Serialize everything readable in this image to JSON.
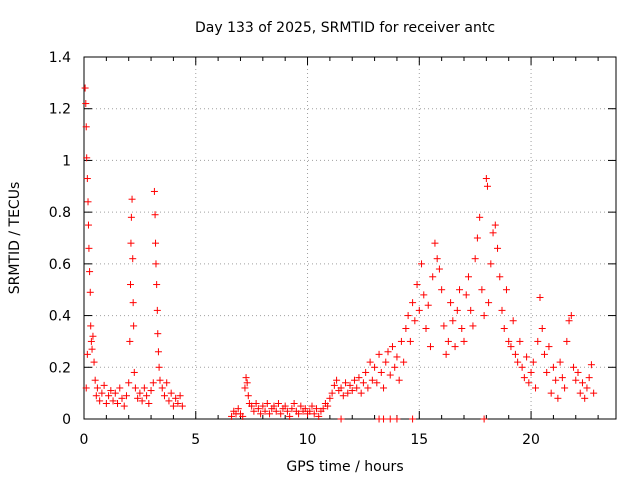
{
  "chart_data": {
    "type": "scatter",
    "title": "Day 133 of 2025, SRMTID for receiver antc",
    "xlabel": "GPS time / hours",
    "ylabel": "SRMTID / TECUs",
    "xlim": [
      0,
      23.8
    ],
    "ylim": [
      0,
      1.4
    ],
    "grid": true,
    "marker": "+",
    "marker_color": "#ff0000",
    "x_ticks": [
      0,
      5,
      10,
      15,
      20
    ],
    "x_tick_labels": [
      "0",
      "5",
      "10",
      "15",
      "20"
    ],
    "y_ticks": [
      0,
      0.2,
      0.4,
      0.6,
      0.8,
      1,
      1.2,
      1.4
    ],
    "y_tick_labels": [
      "0",
      "0.2",
      "0.4",
      "0.6",
      "0.8",
      "1",
      "1.2",
      "1.4"
    ],
    "series": [
      {
        "name": "SRMTID",
        "points": [
          [
            0.05,
            1.28
          ],
          [
            0.08,
            1.22
          ],
          [
            0.1,
            1.13
          ],
          [
            0.12,
            1.01
          ],
          [
            0.15,
            0.93
          ],
          [
            0.18,
            0.84
          ],
          [
            0.2,
            0.75
          ],
          [
            0.22,
            0.66
          ],
          [
            0.25,
            0.57
          ],
          [
            0.28,
            0.49
          ],
          [
            0.3,
            0.36
          ],
          [
            0.33,
            0.3
          ],
          [
            0.36,
            0.27
          ],
          [
            0.4,
            0.32
          ],
          [
            0.45,
            0.22
          ],
          [
            0.5,
            0.15
          ],
          [
            0.1,
            0.12
          ],
          [
            0.15,
            0.25
          ],
          [
            0.55,
            0.09
          ],
          [
            0.6,
            0.12
          ],
          [
            0.7,
            0.07
          ],
          [
            0.8,
            0.1
          ],
          [
            0.9,
            0.13
          ],
          [
            1.0,
            0.06
          ],
          [
            1.1,
            0.09
          ],
          [
            1.2,
            0.11
          ],
          [
            1.3,
            0.07
          ],
          [
            1.4,
            0.1
          ],
          [
            1.5,
            0.06
          ],
          [
            1.6,
            0.12
          ],
          [
            1.7,
            0.08
          ],
          [
            1.8,
            0.05
          ],
          [
            1.9,
            0.09
          ],
          [
            2.0,
            0.14
          ],
          [
            2.05,
            0.3
          ],
          [
            2.08,
            0.52
          ],
          [
            2.1,
            0.68
          ],
          [
            2.12,
            0.78
          ],
          [
            2.15,
            0.85
          ],
          [
            2.18,
            0.62
          ],
          [
            2.2,
            0.45
          ],
          [
            2.22,
            0.36
          ],
          [
            2.25,
            0.18
          ],
          [
            2.3,
            0.12
          ],
          [
            2.4,
            0.08
          ],
          [
            2.5,
            0.1
          ],
          [
            2.6,
            0.07
          ],
          [
            2.7,
            0.12
          ],
          [
            2.8,
            0.09
          ],
          [
            2.9,
            0.06
          ],
          [
            3.0,
            0.11
          ],
          [
            3.1,
            0.14
          ],
          [
            3.15,
            0.88
          ],
          [
            3.18,
            0.79
          ],
          [
            3.2,
            0.68
          ],
          [
            3.22,
            0.6
          ],
          [
            3.25,
            0.52
          ],
          [
            3.28,
            0.42
          ],
          [
            3.3,
            0.33
          ],
          [
            3.33,
            0.26
          ],
          [
            3.36,
            0.2
          ],
          [
            3.4,
            0.15
          ],
          [
            3.5,
            0.12
          ],
          [
            3.6,
            0.09
          ],
          [
            3.7,
            0.14
          ],
          [
            3.8,
            0.07
          ],
          [
            3.9,
            0.1
          ],
          [
            4.0,
            0.05
          ],
          [
            4.1,
            0.08
          ],
          [
            4.2,
            0.06
          ],
          [
            4.3,
            0.09
          ],
          [
            4.4,
            0.05
          ],
          [
            6.6,
            0.01
          ],
          [
            6.7,
            0.03
          ],
          [
            6.8,
            0.02
          ],
          [
            6.9,
            0.04
          ],
          [
            7.0,
            0.02
          ],
          [
            7.1,
            0.01
          ],
          [
            7.2,
            0.12
          ],
          [
            7.25,
            0.16
          ],
          [
            7.3,
            0.14
          ],
          [
            7.35,
            0.09
          ],
          [
            7.4,
            0.06
          ],
          [
            7.5,
            0.05
          ],
          [
            7.6,
            0.03
          ],
          [
            7.7,
            0.06
          ],
          [
            7.8,
            0.04
          ],
          [
            7.9,
            0.02
          ],
          [
            8.0,
            0.05
          ],
          [
            8.1,
            0.03
          ],
          [
            8.2,
            0.06
          ],
          [
            8.3,
            0.02
          ],
          [
            8.4,
            0.04
          ],
          [
            8.5,
            0.05
          ],
          [
            8.6,
            0.03
          ],
          [
            8.7,
            0.06
          ],
          [
            8.8,
            0.02
          ],
          [
            8.9,
            0.04
          ],
          [
            9.0,
            0.05
          ],
          [
            9.1,
            0.03
          ],
          [
            9.2,
            0.01
          ],
          [
            9.3,
            0.04
          ],
          [
            9.4,
            0.06
          ],
          [
            9.5,
            0.03
          ],
          [
            9.6,
            0.02
          ],
          [
            9.7,
            0.05
          ],
          [
            9.8,
            0.03
          ],
          [
            9.9,
            0.04
          ],
          [
            10.0,
            0.02
          ],
          [
            10.1,
            0.03
          ],
          [
            10.2,
            0.05
          ],
          [
            10.3,
            0.02
          ],
          [
            10.4,
            0.04
          ],
          [
            10.5,
            0.01
          ],
          [
            10.6,
            0.03
          ],
          [
            10.7,
            0.04
          ],
          [
            10.8,
            0.06
          ],
          [
            10.9,
            0.05
          ],
          [
            11.0,
            0.08
          ],
          [
            11.1,
            0.1
          ],
          [
            11.2,
            0.13
          ],
          [
            11.3,
            0.15
          ],
          [
            11.4,
            0.11
          ],
          [
            11.5,
            0.12
          ],
          [
            11.6,
            0.09
          ],
          [
            11.7,
            0.14
          ],
          [
            11.8,
            0.1
          ],
          [
            11.9,
            0.13
          ],
          [
            12.0,
            0.11
          ],
          [
            12.1,
            0.15
          ],
          [
            12.2,
            0.12
          ],
          [
            12.3,
            0.16
          ],
          [
            12.4,
            0.1
          ],
          [
            12.5,
            0.14
          ],
          [
            12.6,
            0.18
          ],
          [
            12.7,
            0.12
          ],
          [
            12.8,
            0.22
          ],
          [
            12.9,
            0.15
          ],
          [
            13.0,
            0.2
          ],
          [
            13.1,
            0.14
          ],
          [
            13.2,
            0.25
          ],
          [
            13.3,
            0.18
          ],
          [
            13.4,
            0.12
          ],
          [
            13.5,
            0.22
          ],
          [
            13.6,
            0.26
          ],
          [
            13.7,
            0.17
          ],
          [
            13.8,
            0.28
          ],
          [
            13.9,
            0.2
          ],
          [
            14.0,
            0.24
          ],
          [
            14.1,
            0.15
          ],
          [
            14.2,
            0.3
          ],
          [
            14.3,
            0.22
          ],
          [
            14.4,
            0.35
          ],
          [
            14.5,
            0.4
          ],
          [
            14.6,
            0.3
          ],
          [
            14.7,
            0.45
          ],
          [
            14.8,
            0.38
          ],
          [
            14.9,
            0.52
          ],
          [
            15.0,
            0.42
          ],
          [
            15.1,
            0.6
          ],
          [
            15.2,
            0.48
          ],
          [
            15.3,
            0.35
          ],
          [
            15.4,
            0.44
          ],
          [
            15.5,
            0.28
          ],
          [
            15.6,
            0.55
          ],
          [
            15.7,
            0.68
          ],
          [
            15.8,
            0.62
          ],
          [
            15.9,
            0.58
          ],
          [
            16.0,
            0.5
          ],
          [
            16.1,
            0.36
          ],
          [
            16.2,
            0.25
          ],
          [
            16.3,
            0.3
          ],
          [
            16.4,
            0.45
          ],
          [
            16.5,
            0.38
          ],
          [
            16.6,
            0.28
          ],
          [
            16.7,
            0.42
          ],
          [
            16.8,
            0.5
          ],
          [
            16.9,
            0.35
          ],
          [
            17.0,
            0.3
          ],
          [
            17.1,
            0.48
          ],
          [
            17.2,
            0.55
          ],
          [
            17.3,
            0.42
          ],
          [
            17.4,
            0.36
          ],
          [
            17.5,
            0.62
          ],
          [
            17.6,
            0.7
          ],
          [
            17.7,
            0.78
          ],
          [
            17.8,
            0.5
          ],
          [
            17.9,
            0.4
          ],
          [
            18.0,
            0.93
          ],
          [
            18.05,
            0.9
          ],
          [
            18.1,
            0.45
          ],
          [
            18.2,
            0.6
          ],
          [
            18.3,
            0.72
          ],
          [
            18.4,
            0.75
          ],
          [
            18.5,
            0.66
          ],
          [
            18.6,
            0.55
          ],
          [
            18.7,
            0.42
          ],
          [
            18.8,
            0.35
          ],
          [
            18.9,
            0.5
          ],
          [
            19.0,
            0.3
          ],
          [
            19.1,
            0.28
          ],
          [
            19.2,
            0.38
          ],
          [
            19.3,
            0.25
          ],
          [
            19.4,
            0.22
          ],
          [
            19.5,
            0.3
          ],
          [
            19.6,
            0.2
          ],
          [
            19.7,
            0.16
          ],
          [
            19.8,
            0.24
          ],
          [
            19.9,
            0.14
          ],
          [
            20.0,
            0.18
          ],
          [
            20.1,
            0.22
          ],
          [
            20.2,
            0.12
          ],
          [
            20.3,
            0.3
          ],
          [
            20.4,
            0.47
          ],
          [
            20.5,
            0.35
          ],
          [
            20.6,
            0.25
          ],
          [
            20.7,
            0.18
          ],
          [
            20.8,
            0.28
          ],
          [
            20.9,
            0.1
          ],
          [
            21.0,
            0.2
          ],
          [
            21.1,
            0.15
          ],
          [
            21.2,
            0.08
          ],
          [
            21.3,
            0.22
          ],
          [
            21.4,
            0.16
          ],
          [
            21.5,
            0.12
          ],
          [
            21.6,
            0.3
          ],
          [
            21.7,
            0.38
          ],
          [
            21.8,
            0.4
          ],
          [
            21.9,
            0.2
          ],
          [
            22.0,
            0.15
          ],
          [
            22.1,
            0.18
          ],
          [
            22.2,
            0.1
          ],
          [
            22.3,
            0.14
          ],
          [
            22.4,
            0.08
          ],
          [
            22.5,
            0.12
          ],
          [
            22.6,
            0.16
          ],
          [
            22.7,
            0.21
          ],
          [
            22.8,
            0.1
          ],
          [
            13.2,
            0.0
          ],
          [
            13.4,
            0.0
          ],
          [
            13.7,
            0.0
          ],
          [
            14.0,
            0.0
          ],
          [
            14.7,
            0.0
          ],
          [
            17.9,
            0.0
          ],
          [
            11.5,
            0.0
          ]
        ]
      }
    ]
  }
}
